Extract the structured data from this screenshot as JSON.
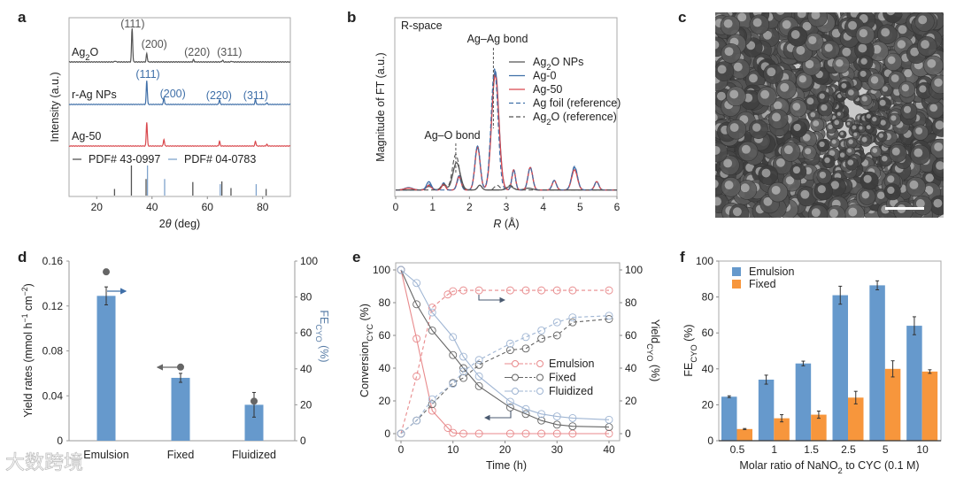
{
  "colors": {
    "black": "#555555",
    "blue": "#3f6fa8",
    "red": "#d9484d",
    "bar_blue": "#6699cc",
    "bar_orange": "#f7963c",
    "fe_label": "#5b7fa8",
    "e_emulsion": "#e88a8c",
    "e_fixed": "#666666",
    "e_fluid": "#9fb5d3"
  },
  "watermark": "大数跨境",
  "chart_data": [
    {
      "panel": "a",
      "type": "line",
      "xlabel_pre": "2",
      "xlabel_theta": "θ",
      "xlabel_post": " (deg)",
      "ylabel": "Intensity (a.u.)",
      "xlim": [
        10,
        90
      ],
      "xticks": [
        "20",
        "40",
        "60",
        "80"
      ],
      "series": [
        {
          "name_main": "Ag",
          "name_sub": "2",
          "name_post": "O",
          "color": "black",
          "peaks": [
            [
              26.7,
              0.03
            ],
            [
              32.8,
              1.0
            ],
            [
              38.1,
              0.25
            ],
            [
              55.0,
              0.07
            ],
            [
              65.5,
              0.05
            ],
            [
              68.8,
              0.02
            ]
          ],
          "peak_labels": [
            {
              "t": "(111)",
              "x": 33
            },
            {
              "t": "(200)",
              "x": 40.8
            },
            {
              "t": "(220)",
              "x": 56.3
            },
            {
              "t": "(311)",
              "x": 68
            }
          ]
        },
        {
          "name": "r-Ag NPs",
          "color": "blue",
          "peaks": [
            [
              38.1,
              1.0
            ],
            [
              44.3,
              0.28
            ],
            [
              64.4,
              0.2
            ],
            [
              77.4,
              0.2
            ],
            [
              81.5,
              0.07
            ]
          ],
          "peak_labels": [
            {
              "t": "(111)",
              "x": 38.5
            },
            {
              "t": "(200)",
              "x": 47.5
            },
            {
              "t": "(220)",
              "x": 64.2
            },
            {
              "t": "(311)",
              "x": 77.5
            }
          ]
        },
        {
          "name": "Ag-50",
          "color": "red",
          "peaks": [
            [
              38.1,
              1.0
            ],
            [
              44.3,
              0.28
            ],
            [
              64.4,
              0.2
            ],
            [
              77.4,
              0.2
            ],
            [
              81.5,
              0.07
            ]
          ],
          "peak_labels": []
        }
      ],
      "references": [
        {
          "name": "PDF# 43-0997",
          "color": "black",
          "sticks": [
            [
              26.7,
              0.22
            ],
            [
              32.8,
              1.0
            ],
            [
              38.1,
              0.55
            ],
            [
              55.0,
              0.45
            ],
            [
              65.5,
              0.47
            ],
            [
              68.8,
              0.25
            ],
            [
              81.5,
              0.22
            ]
          ]
        },
        {
          "name": "PDF# 04-0783",
          "color": "blue",
          "sticks": [
            [
              38.1,
              1.0
            ],
            [
              44.3,
              0.55
            ],
            [
              64.4,
              0.38
            ],
            [
              77.4,
              0.38
            ]
          ]
        }
      ]
    },
    {
      "panel": "b",
      "type": "line",
      "xlabel_italic": "R",
      "xlabel_post": " (Å)",
      "ylabel": "Magnitude of FT (a.u.)",
      "xlim": [
        0,
        6
      ],
      "xticks": [
        "0",
        "1",
        "2",
        "3",
        "4",
        "5",
        "6"
      ],
      "annotation_space": "R-space",
      "annotation_agag": "Ag–Ag bond",
      "annotation_ago": "Ag–O bond",
      "series": [
        {
          "name_main": "Ag",
          "name_sub": "2",
          "name_post": "O NPs",
          "color": "#555555",
          "dash": false,
          "peaks": [
            [
              0.9,
              0.03,
              0.12
            ],
            [
              1.3,
              0.04,
              0.1
            ],
            [
              1.65,
              0.23,
              0.14
            ],
            [
              2.28,
              0.04,
              0.08
            ],
            [
              3.1,
              0.03,
              0.12
            ],
            [
              3.6,
              0.015,
              0.15
            ]
          ]
        },
        {
          "name": "Ag-0",
          "color": "#3f6fa8",
          "dash": false,
          "peaks": [
            [
              0.35,
              0.02,
              0.15
            ],
            [
              0.9,
              0.07,
              0.09
            ],
            [
              1.3,
              0.06,
              0.07
            ],
            [
              1.72,
              0.12,
              0.08
            ],
            [
              2.22,
              0.37,
              0.1
            ],
            [
              2.7,
              1.0,
              0.14
            ],
            [
              3.2,
              0.17,
              0.07
            ],
            [
              3.65,
              0.19,
              0.09
            ],
            [
              4.3,
              0.08,
              0.08
            ],
            [
              4.85,
              0.19,
              0.11
            ],
            [
              5.45,
              0.07,
              0.08
            ]
          ]
        },
        {
          "name": "Ag-50",
          "color": "#d9484d",
          "dash": false,
          "peaks": [
            [
              0.35,
              0.015,
              0.15
            ],
            [
              0.9,
              0.04,
              0.09
            ],
            [
              1.3,
              0.05,
              0.07
            ],
            [
              1.72,
              0.11,
              0.08
            ],
            [
              2.22,
              0.36,
              0.1
            ],
            [
              2.7,
              0.97,
              0.14
            ],
            [
              3.2,
              0.17,
              0.07
            ],
            [
              3.65,
              0.19,
              0.09
            ],
            [
              4.3,
              0.08,
              0.08
            ],
            [
              4.85,
              0.17,
              0.11
            ],
            [
              5.45,
              0.07,
              0.08
            ]
          ]
        },
        {
          "name": "Ag foil (reference)",
          "color": "#3f6fa8",
          "dash": true,
          "peaks": [
            [
              0.9,
              0.05,
              0.09
            ],
            [
              1.72,
              0.1,
              0.08
            ],
            [
              2.22,
              0.37,
              0.1
            ],
            [
              2.68,
              1.02,
              0.13
            ],
            [
              3.2,
              0.17,
              0.07
            ],
            [
              3.65,
              0.19,
              0.09
            ],
            [
              4.3,
              0.08,
              0.08
            ],
            [
              4.85,
              0.2,
              0.11
            ],
            [
              5.45,
              0.07,
              0.08
            ]
          ]
        },
        {
          "name_main": "Ag",
          "name_sub": "2",
          "name_post": "O (reference)",
          "color": "#555555",
          "dash": true,
          "peaks": [
            [
              1.3,
              0.05,
              0.1
            ],
            [
              1.63,
              0.3,
              0.13
            ],
            [
              2.28,
              0.04,
              0.08
            ],
            [
              2.75,
              0.04,
              0.1
            ],
            [
              3.1,
              0.04,
              0.12
            ]
          ]
        }
      ]
    },
    {
      "panel": "c",
      "type": "image",
      "description_hidden": false
    },
    {
      "panel": "d",
      "type": "bar",
      "categories": [
        "Emulsion",
        "Fixed",
        "Fluidized"
      ],
      "ylabel_pre": "Yield rates (mmol h",
      "ylabel_sup1": "−1",
      "ylabel_mid": " cm",
      "ylabel_sup2": "−2",
      "ylabel_post": ")",
      "y2label_main": "FE",
      "y2label_sub": "CYO",
      "y2label_post": " (%)",
      "ylim": [
        0,
        0.16
      ],
      "yticks": [
        "0",
        "0.04",
        "0.08",
        "0.12",
        "0.16"
      ],
      "y2lim": [
        0,
        100
      ],
      "y2ticks": [
        "0",
        "20",
        "40",
        "60",
        "80",
        "100"
      ],
      "series": [
        {
          "name": "Yield rates",
          "values": [
            0.129,
            0.056,
            0.032
          ],
          "errors": [
            0.008,
            0.004,
            0.011
          ]
        },
        {
          "name": "FE",
          "values": [
            94,
            41,
            22
          ]
        }
      ]
    },
    {
      "panel": "e",
      "type": "line",
      "xlabel": "Time (h)",
      "ylabel_main": "Conversion",
      "ylabel_sub": "CYC",
      "ylabel_post": " (%)",
      "y2label_main": "Yield",
      "y2label_sub": "CYO",
      "y2label_post": " (%)",
      "xlim": [
        0,
        40
      ],
      "xticks": [
        "0",
        "10",
        "20",
        "30",
        "40"
      ],
      "ylim": [
        0,
        100
      ],
      "yticks": [
        "0",
        "20",
        "40",
        "60",
        "80",
        "100"
      ],
      "y2lim": [
        0,
        100
      ],
      "y2ticks": [
        "0",
        "20",
        "40",
        "60",
        "80",
        "100"
      ],
      "x": [
        0,
        3,
        6,
        9,
        10,
        12,
        15,
        21,
        24,
        27,
        30,
        33,
        40
      ],
      "series": [
        {
          "name": "Emulsion",
          "color": "e_emulsion",
          "conversion": [
            100,
            58,
            14,
            3.5,
            0.5,
            0,
            0,
            0,
            0,
            0,
            0,
            0,
            0
          ],
          "yield": [
            0,
            35,
            77,
            85,
            87,
            87.5,
            87.5,
            87.5,
            87.5,
            87.5,
            87.5,
            87.5,
            87.5
          ]
        },
        {
          "name": "Fixed",
          "color": "e_fixed",
          "conversion": [
            100,
            79,
            63,
            null,
            48,
            40,
            29,
            16,
            12,
            8,
            5.5,
            4.5,
            4
          ],
          "yield": [
            0,
            8,
            18,
            null,
            31,
            34,
            42,
            51,
            52,
            58,
            60,
            68,
            70
          ]
        },
        {
          "name": "Fluidized",
          "color": "e_fluid",
          "conversion": [
            100,
            92,
            74,
            null,
            59,
            47,
            35,
            19.5,
            15,
            12,
            10.5,
            9.5,
            8.5
          ],
          "yield": [
            0,
            8,
            21,
            null,
            30.5,
            38,
            45,
            55,
            59,
            63,
            68,
            71,
            72
          ]
        }
      ]
    },
    {
      "panel": "f",
      "type": "bar",
      "categories": [
        "0.5",
        "1",
        "1.5",
        "2.5",
        "5",
        "10"
      ],
      "xlabel_pre": "Molar ratio of NaNO",
      "xlabel_sub": "2",
      "xlabel_post": " to CYC (0.1 M)",
      "ylabel_main": "FE",
      "ylabel_sub": "CYO",
      "ylabel_post": " (%)",
      "ylim": [
        0,
        100
      ],
      "yticks": [
        "0",
        "20",
        "40",
        "60",
        "80",
        "100"
      ],
      "series": [
        {
          "name": "Emulsion",
          "color": "bar_blue",
          "values": [
            24.5,
            34,
            43,
            81,
            86.5,
            64
          ],
          "errors": [
            0.5,
            2.5,
            1.3,
            5,
            2.5,
            5
          ]
        },
        {
          "name": "Fixed",
          "color": "bar_orange",
          "values": [
            6.5,
            12.5,
            14.5,
            24,
            40,
            38.5
          ],
          "errors": [
            0.3,
            2,
            2,
            3.5,
            4.5,
            1
          ]
        }
      ]
    }
  ],
  "letters": [
    "a",
    "b",
    "c",
    "d",
    "e",
    "f"
  ]
}
